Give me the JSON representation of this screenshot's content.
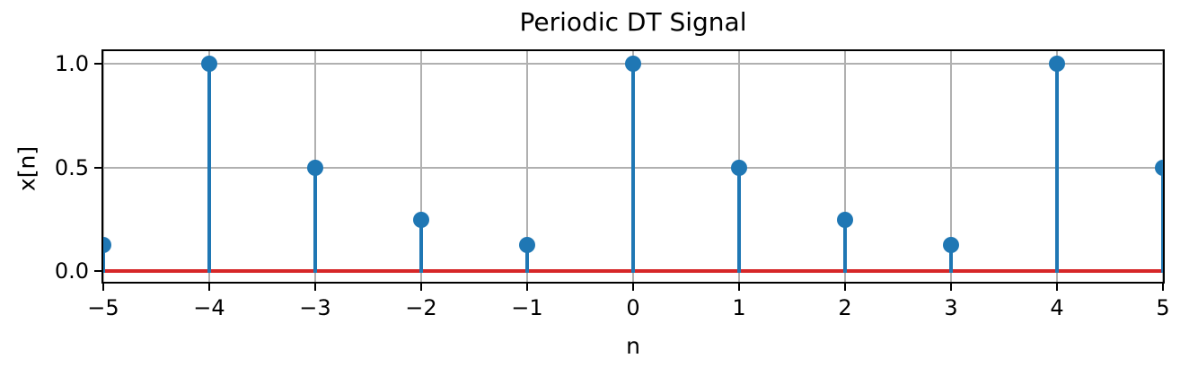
{
  "chart_data": {
    "type": "stem",
    "title": "Periodic DT Signal",
    "xlabel": "n",
    "ylabel": "x[n]",
    "x": [
      -5,
      -4,
      -3,
      -2,
      -1,
      0,
      1,
      2,
      3,
      4,
      5
    ],
    "values": [
      0.125,
      1.0,
      0.5,
      0.25,
      0.125,
      1.0,
      0.5,
      0.25,
      0.125,
      1.0,
      0.5
    ],
    "xlim": [
      -5,
      5
    ],
    "ylim": [
      -0.05,
      1.06
    ],
    "xticks": [
      -5,
      -4,
      -3,
      -2,
      -1,
      0,
      1,
      2,
      3,
      4,
      5
    ],
    "xtick_labels": [
      "−5",
      "−4",
      "−3",
      "−2",
      "−1",
      "0",
      "1",
      "2",
      "3",
      "4",
      "5"
    ],
    "yticks": [
      0.0,
      0.5,
      1.0
    ],
    "ytick_labels": [
      "0.0",
      "0.5",
      "1.0"
    ],
    "grid": true,
    "legend_position": "none",
    "baseline": {
      "value": 0.0,
      "color": "#d62728"
    },
    "colors": {
      "stem": "#1f77b4",
      "marker": "#1f77b4",
      "grid": "#b0b0b0",
      "spine": "#000000",
      "background": "#ffffff",
      "text": "#000000"
    }
  }
}
